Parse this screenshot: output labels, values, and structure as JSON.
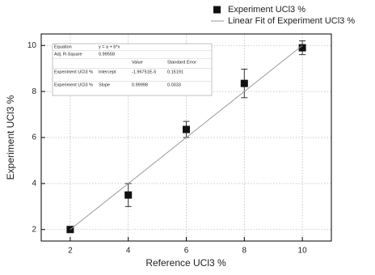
{
  "chart_data": {
    "type": "scatter",
    "xlabel": "Reference UCl3 %",
    "ylabel": "Experiment UCl3 %",
    "xlim": [
      1,
      11
    ],
    "xticks": [
      2,
      4,
      6,
      8,
      10
    ],
    "ylim": [
      1.5,
      10.5
    ],
    "yticks": [
      2,
      4,
      6,
      8,
      10
    ],
    "grid": true,
    "legend": "top-right",
    "series": [
      {
        "name": "Experiment UCl3 %",
        "color": "#111111",
        "kind": "points",
        "x": [
          2,
          4,
          6,
          8,
          10
        ],
        "values": [
          2.0,
          3.5,
          6.35,
          8.35,
          9.9
        ],
        "errors": [
          0.05,
          0.5,
          0.35,
          0.62,
          0.3
        ]
      },
      {
        "name": "Linear Fit of Experiment UCl3 %",
        "color": "#999999",
        "kind": "line",
        "x": [
          2,
          10
        ],
        "values": [
          2,
          10
        ]
      }
    ]
  },
  "fit_table": {
    "rows": [
      {
        "label": "Equation",
        "param": "y = a + b*x"
      },
      {
        "label": "Adj. R-Square",
        "param": "0.99558"
      },
      {
        "value": "Value",
        "error": "Standard Error"
      },
      {
        "label": "Experiment UCl3 %",
        "param": "Intercept",
        "value": "-1.96751E-5",
        "error": "0.15191"
      },
      {
        "label": "Experiment UCl3 %",
        "param": "Slope",
        "value": "0.99998",
        "error": "0.0333"
      }
    ]
  }
}
